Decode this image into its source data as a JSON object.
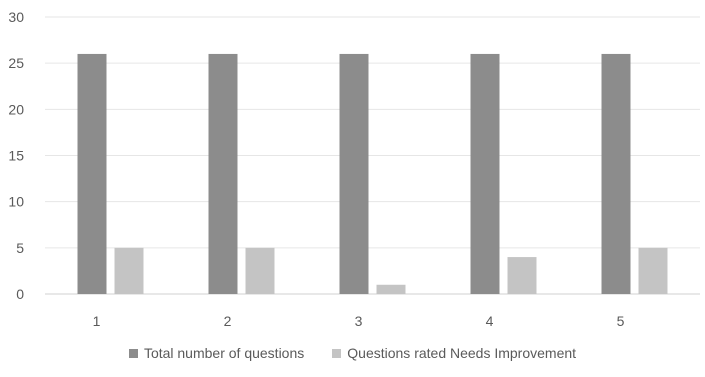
{
  "chart_data": {
    "type": "bar",
    "categories": [
      "1",
      "2",
      "3",
      "4",
      "5"
    ],
    "series": [
      {
        "name": "Total number of questions",
        "values": [
          26,
          26,
          26,
          26,
          26
        ],
        "color": "#8c8c8c"
      },
      {
        "name": "Questions rated Needs Improvement",
        "values": [
          5,
          5,
          1,
          4,
          5
        ],
        "color": "#c4c4c4"
      }
    ],
    "yticks": [
      "0",
      "5",
      "10",
      "15",
      "20",
      "25",
      "30"
    ],
    "ylim": [
      0,
      30
    ],
    "title": "",
    "xlabel": "",
    "ylabel": "",
    "grid": true,
    "legend_position": "bottom"
  }
}
